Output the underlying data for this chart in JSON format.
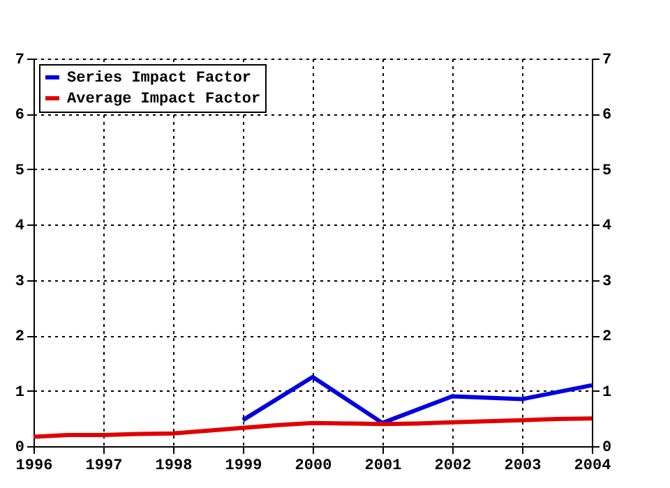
{
  "chart_data": {
    "type": "line",
    "xlim": [
      1996,
      2004
    ],
    "xticks": [
      1996,
      1997,
      1998,
      1999,
      2000,
      2001,
      2002,
      2003,
      2004
    ],
    "ylim": [
      0,
      7
    ],
    "yticks": [
      0,
      1,
      2,
      3,
      4,
      5,
      6,
      7
    ],
    "y2lim": [
      0,
      7
    ],
    "y2ticks": [
      0,
      1,
      2,
      3,
      4,
      5,
      6,
      7
    ],
    "grid": true,
    "legend": "top left",
    "line_style": "solid",
    "marker": "none",
    "series": [
      {
        "name": "Series Impact Factor",
        "color": "#0000e0",
        "x": [
          1999,
          2000,
          2001,
          2002,
          2003,
          2004
        ],
        "values": [
          0.47,
          1.25,
          0.42,
          0.9,
          0.85,
          1.1
        ]
      },
      {
        "name": "Average Impact Factor",
        "color": "#e00000",
        "x": [
          1996,
          1996.5,
          1997,
          1997.5,
          1998,
          1998.5,
          1999,
          1999.5,
          2000,
          2000.5,
          2001,
          2001.5,
          2002,
          2002.5,
          2003,
          2003.5,
          2004
        ],
        "values": [
          0.17,
          0.2,
          0.2,
          0.22,
          0.23,
          0.28,
          0.33,
          0.38,
          0.42,
          0.41,
          0.4,
          0.41,
          0.43,
          0.45,
          0.47,
          0.49,
          0.5
        ]
      }
    ]
  }
}
